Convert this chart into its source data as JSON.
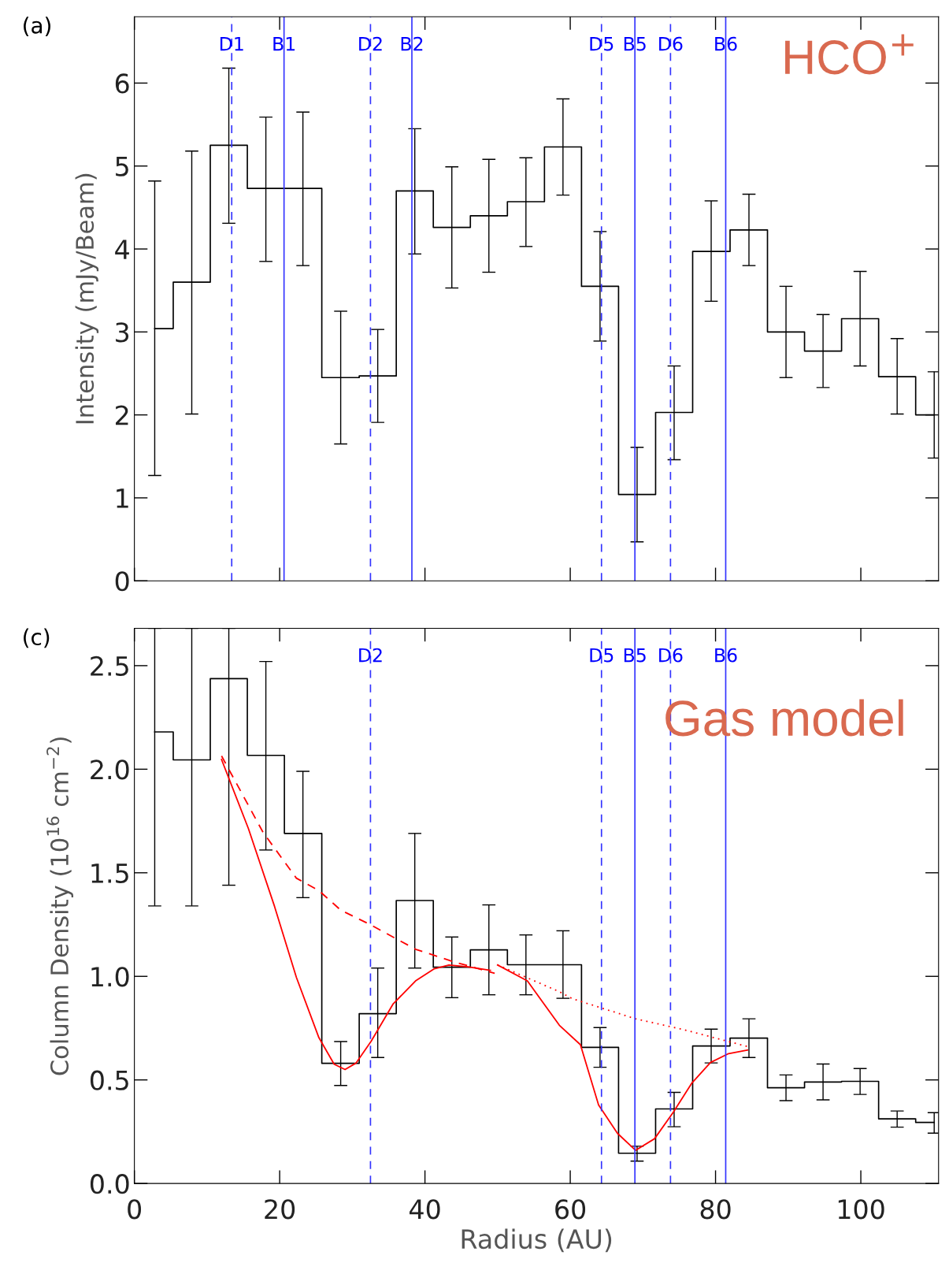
{
  "chart_data": [
    {
      "type": "step",
      "ylabel": "Intensity (mJy/Beam)",
      "annotations": [
        "(a)",
        "HCO$^{+}$"
      ],
      "x": [
        2.8,
        7.9,
        13.0,
        18.1,
        23.2,
        28.4,
        33.5,
        38.6,
        43.7,
        48.8,
        53.9,
        59.0,
        64.1,
        69.2,
        74.3,
        79.4,
        84.6,
        89.7,
        94.8,
        99.9,
        105.0,
        110.1
      ],
      "xlim": [
        0,
        110.7
      ],
      "xticks": [
        0,
        20,
        40,
        60,
        80,
        100
      ],
      "ylim": [
        0,
        6.8
      ],
      "yticks": [
        0,
        1,
        2,
        3,
        4,
        5,
        6
      ],
      "tick_labels": "y",
      "series": [
        {
          "color": "#000000",
          "values": [
            3.04,
            3.6,
            5.25,
            4.73,
            4.73,
            2.45,
            2.47,
            4.7,
            4.26,
            4.4,
            4.57,
            5.23,
            3.55,
            1.04,
            2.03,
            3.97,
            4.23,
            3.0,
            2.77,
            3.16,
            2.46,
            2.0
          ],
          "errors": [
            [
              1.27,
              4.82
            ],
            [
              2.01,
              5.18
            ],
            [
              4.31,
              6.18
            ],
            [
              3.85,
              5.59
            ],
            [
              3.8,
              5.65
            ],
            [
              1.65,
              3.25
            ],
            [
              1.91,
              3.03
            ],
            [
              3.94,
              5.45
            ],
            [
              3.53,
              4.99
            ],
            [
              3.72,
              5.08
            ],
            [
              4.03,
              5.1
            ],
            [
              4.65,
              5.81
            ],
            [
              2.89,
              4.21
            ],
            [
              0.47,
              1.61
            ],
            [
              1.46,
              2.59
            ],
            [
              3.37,
              4.58
            ],
            [
              3.8,
              4.66
            ],
            [
              2.45,
              3.55
            ],
            [
              2.33,
              3.21
            ],
            [
              2.59,
              3.73
            ],
            [
              2.01,
              2.92
            ],
            [
              1.48,
              2.52
            ]
          ]
        }
      ],
      "ref_lines": [
        {
          "axis": "x",
          "value": 13.4,
          "label": "D1",
          "color": "#3333ff",
          "line_style": "dashed"
        },
        {
          "axis": "x",
          "value": 20.6,
          "label": "B1",
          "color": "#3333ff",
          "line_style": "solid"
        },
        {
          "axis": "x",
          "value": 32.5,
          "label": "D2",
          "color": "#3333ff",
          "line_style": "dashed"
        },
        {
          "axis": "x",
          "value": 38.2,
          "label": "B2",
          "color": "#3333ff",
          "line_style": "solid"
        },
        {
          "axis": "x",
          "value": 64.3,
          "label": "D5",
          "color": "#3333ff",
          "line_style": "dashed"
        },
        {
          "axis": "x",
          "value": 68.9,
          "label": "B5",
          "color": "#3333ff",
          "line_style": "solid"
        },
        {
          "axis": "x",
          "value": 73.8,
          "label": "D6",
          "color": "#3333ff",
          "line_style": "dashed"
        },
        {
          "axis": "x",
          "value": 81.4,
          "label": "B6",
          "color": "#3333ff",
          "line_style": "solid"
        }
      ]
    },
    {
      "type": "step",
      "xlabel": "Radius (AU)",
      "ylabel": "Column Density (10$^{16}$ cm$^{−2}$)",
      "annotations": [
        "(c)",
        "Gas model"
      ],
      "x": [
        2.8,
        7.9,
        13.0,
        18.1,
        23.2,
        28.4,
        33.5,
        38.6,
        43.7,
        48.8,
        53.9,
        59.0,
        64.1,
        69.2,
        74.3,
        79.4,
        84.6,
        89.7,
        94.8,
        99.9,
        105.0,
        110.1
      ],
      "xlim": [
        0,
        110.7
      ],
      "xticks": [
        0,
        20,
        40,
        60,
        80,
        100
      ],
      "ylim": [
        0,
        2.68
      ],
      "yticks": [
        {
          "value": 0,
          "label": "0.0"
        },
        {
          "value": 0.5,
          "label": "0.5"
        },
        {
          "value": 1,
          "label": "1.0"
        },
        {
          "value": 1.5,
          "label": "1.5"
        },
        {
          "value": 2,
          "label": "2.0"
        },
        {
          "value": 2.5,
          "label": "2.5"
        }
      ],
      "series": [
        {
          "color": "#000000",
          "values": [
            2.18,
            2.045,
            2.437,
            2.067,
            1.69,
            0.58,
            0.82,
            1.366,
            1.044,
            1.128,
            1.056,
            1.056,
            0.657,
            0.146,
            0.36,
            0.664,
            0.702,
            0.462,
            0.49,
            0.493,
            0.312,
            0.295
          ],
          "errors": [
            [
              1.34,
              2.68
            ],
            [
              1.34,
              2.68
            ],
            [
              1.44,
              2.68
            ],
            [
              1.61,
              2.52
            ],
            [
              1.38,
              1.99
            ],
            [
              0.473,
              0.685
            ],
            [
              0.608,
              1.04
            ],
            [
              1.04,
              1.69
            ],
            [
              0.897,
              1.19
            ],
            [
              0.911,
              1.345
            ],
            [
              0.911,
              1.2
            ],
            [
              0.894,
              1.22
            ],
            [
              0.561,
              0.753
            ],
            [
              0.108,
              0.18
            ],
            [
              0.274,
              0.44
            ],
            [
              0.582,
              0.745
            ],
            [
              0.608,
              0.795
            ],
            [
              0.4,
              0.524
            ],
            [
              0.404,
              0.577
            ],
            [
              0.43,
              0.555
            ],
            [
              0.272,
              0.35
            ],
            [
              0.243,
              0.342
            ]
          ]
        },
        {
          "type": "line",
          "color": "#ff0000",
          "line_style": "solid",
          "x": [
            12.0,
            15.7,
            19.3,
            22.3,
            25.4,
            27.5,
            29.0,
            30.5,
            32.6,
            35.6,
            38.7,
            41.3,
            43.3,
            45.9,
            49.0,
            null,
            50.0,
            54.1,
            58.5,
            61.4,
            63.9,
            66.5,
            69.0,
            71.6,
            74.2,
            76.7,
            79.3,
            81.8,
            84.4
          ],
          "values": [
            2.047,
            1.713,
            1.337,
            0.995,
            0.704,
            0.576,
            0.55,
            0.581,
            0.687,
            0.866,
            0.978,
            1.037,
            1.055,
            1.046,
            1.029,
            null,
            1.055,
            0.978,
            0.764,
            0.67,
            0.379,
            0.242,
            0.16,
            0.216,
            0.345,
            0.483,
            0.584,
            0.627,
            0.644
          ]
        },
        {
          "type": "line",
          "color": "#ff0000",
          "line_style": "dashed",
          "x": [
            12.0,
            17.7,
            22.3,
            25.4,
            28.4,
            32.4,
            38.7,
            43.8,
            49.6
          ],
          "values": [
            2.064,
            1.696,
            1.474,
            1.414,
            1.32,
            1.251,
            1.131,
            1.072,
            1.015
          ]
        },
        {
          "type": "line",
          "color": "#ff0000",
          "line_style": "dotted",
          "x": [
            50.0,
            58.5,
            60.3,
            69.0,
            75.7,
            84.4
          ],
          "values": [
            1.055,
            0.926,
            0.892,
            0.795,
            0.742,
            0.661
          ]
        }
      ],
      "ref_lines": [
        {
          "axis": "x",
          "value": 32.5,
          "label": "D2",
          "color": "#3333ff",
          "line_style": "dashed"
        },
        {
          "axis": "x",
          "value": 64.3,
          "label": "D5",
          "color": "#3333ff",
          "line_style": "dashed"
        },
        {
          "axis": "x",
          "value": 68.9,
          "label": "B5",
          "color": "#3333ff",
          "line_style": "solid"
        },
        {
          "axis": "x",
          "value": 73.8,
          "label": "D6",
          "color": "#3333ff",
          "line_style": "dashed"
        },
        {
          "axis": "x",
          "value": 81.4,
          "label": "B6",
          "color": "#3333ff",
          "line_style": "solid"
        }
      ]
    }
  ]
}
